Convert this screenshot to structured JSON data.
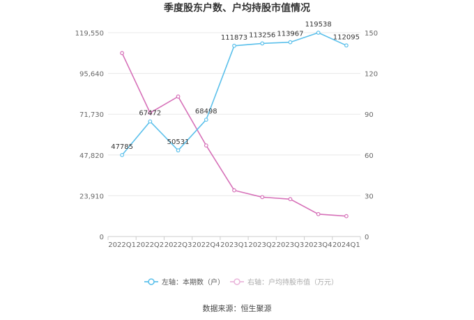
{
  "chart_data": {
    "type": "line",
    "title": "季度股东户数、户均持股市值情况",
    "categories": [
      "2022Q1",
      "2022Q2",
      "2022Q3",
      "2022Q4",
      "2023Q1",
      "2023Q2",
      "2023Q3",
      "2023Q4",
      "2024Q1"
    ],
    "y_left": {
      "ticks": [
        "0",
        "23,910",
        "47,820",
        "71,730",
        "95,640",
        "119,550"
      ],
      "lim": [
        0,
        119550
      ]
    },
    "y_right": {
      "ticks": [
        "0",
        "30",
        "60",
        "90",
        "120",
        "150"
      ],
      "lim": [
        0,
        150
      ]
    },
    "series": [
      {
        "name": "左轴：本期数（户）",
        "axis": "left",
        "color": "#5bc0eb",
        "values": [
          47785,
          67472,
          50531,
          68498,
          111873,
          113256,
          113967,
          119538,
          112095
        ],
        "labels": [
          "47785",
          "67472",
          "50531",
          "68498",
          "111873",
          "113256",
          "113967",
          "119538",
          "112095"
        ]
      },
      {
        "name": "右轴：户均持股市值（万元）",
        "axis": "right",
        "color": "#d670b8",
        "values": [
          135,
          91,
          103,
          67,
          34,
          29,
          27.5,
          16.5,
          15
        ]
      }
    ],
    "grid": true,
    "legend_position": "bottom"
  },
  "footer": {
    "source": "数据来源：恒生聚源"
  }
}
